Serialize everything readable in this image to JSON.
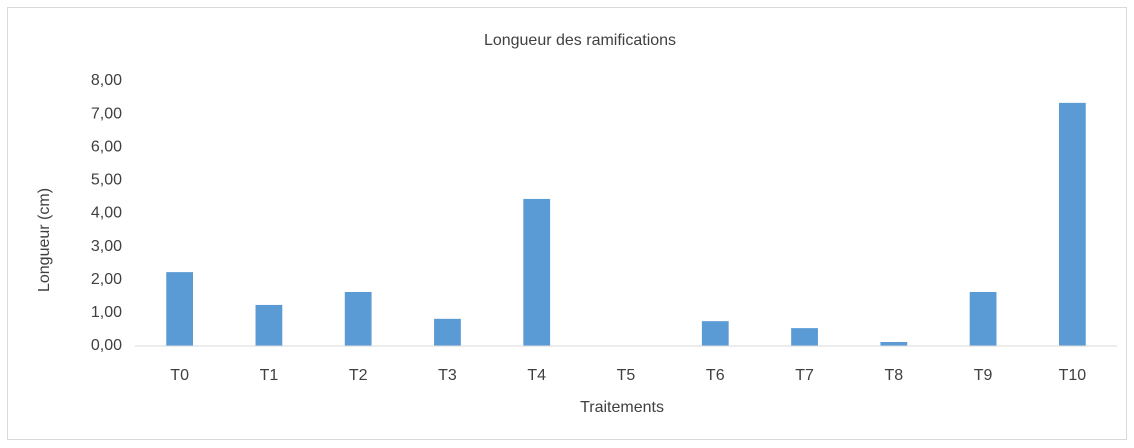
{
  "chart_data": {
    "type": "bar",
    "title": "Longueur des ramifications",
    "x_label": "Traitements",
    "y_label": "Longueur (cm)",
    "categories": [
      "T0",
      "T1",
      "T2",
      "T3",
      "T4",
      "T5",
      "T6",
      "T7",
      "T8",
      "T9",
      "T10"
    ],
    "values": [
      2.23,
      1.24,
      1.63,
      0.82,
      4.44,
      0,
      0.75,
      0.54,
      0.12,
      1.63,
      7.34
    ],
    "color": "#5b9bd5",
    "ylim": [
      0,
      8
    ],
    "yticks": [
      {
        "value": 0,
        "label": "0,00"
      },
      {
        "value": 1,
        "label": "1,00"
      },
      {
        "value": 2,
        "label": "2,00"
      },
      {
        "value": 3,
        "label": "3,00"
      },
      {
        "value": 4,
        "label": "4,00"
      },
      {
        "value": 5,
        "label": "5,00"
      },
      {
        "value": 6,
        "label": "6,00"
      },
      {
        "value": 7,
        "label": "7,00"
      },
      {
        "value": 8,
        "label": "8,00"
      }
    ],
    "grid": false
  }
}
